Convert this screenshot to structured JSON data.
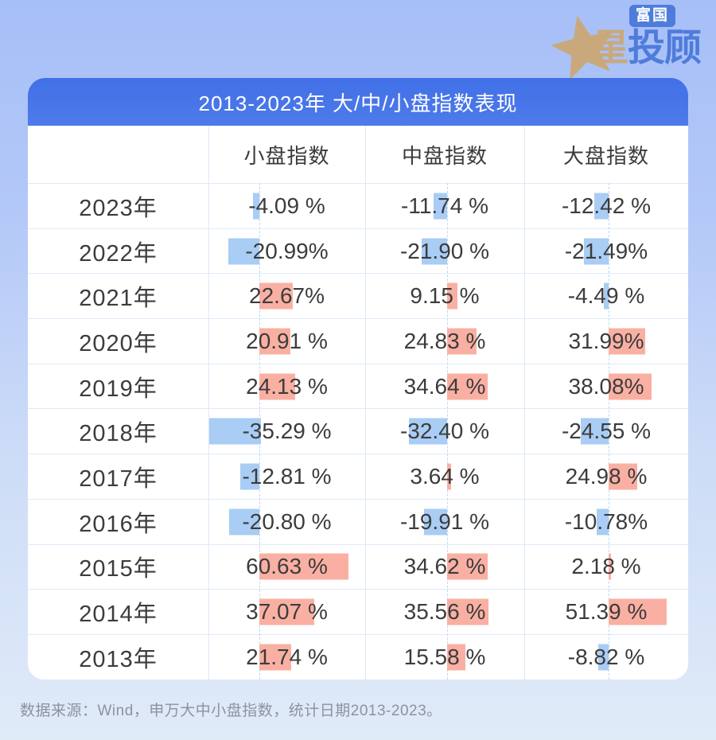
{
  "logo": {
    "badge": "富国",
    "star_char": "星",
    "rest": "投顾"
  },
  "card": {
    "title": "2013-2023年 大/中/小盘指数表现"
  },
  "table": {
    "columns": [
      "",
      "小盘指数",
      "中盘指数",
      "大盘指数"
    ],
    "rows": [
      {
        "year": "2023年",
        "values": [
          "-4.09 %",
          "-11.74 %",
          "-12.42 %"
        ],
        "nums": [
          -4.09,
          -11.74,
          -12.42
        ]
      },
      {
        "year": "2022年",
        "values": [
          "-20.99%",
          "-21.90 %",
          "-21.49%"
        ],
        "nums": [
          -20.99,
          -21.9,
          -21.49
        ]
      },
      {
        "year": "2021年",
        "values": [
          "22.67%",
          "9.15 %",
          "-4.49 %"
        ],
        "nums": [
          22.67,
          9.15,
          -4.49
        ]
      },
      {
        "year": "2020年",
        "values": [
          "20.91 %",
          "24.83 %",
          "31.99%"
        ],
        "nums": [
          20.91,
          24.83,
          31.99
        ]
      },
      {
        "year": "2019年",
        "values": [
          "24.13 %",
          "34.64 %",
          "38.08%"
        ],
        "nums": [
          24.13,
          34.64,
          38.08
        ]
      },
      {
        "year": "2018年",
        "values": [
          "-35.29 %",
          "-32.40 %",
          "-24.55 %"
        ],
        "nums": [
          -35.29,
          -32.4,
          -24.55
        ]
      },
      {
        "year": "2017年",
        "values": [
          "-12.81 %",
          "3.64 %",
          "24.98 %"
        ],
        "nums": [
          -12.81,
          3.64,
          24.98
        ]
      },
      {
        "year": "2016年",
        "values": [
          "-20.80 %",
          "-19.91 %",
          "-10.78%"
        ],
        "nums": [
          -20.8,
          -19.91,
          -10.78
        ]
      },
      {
        "year": "2015年",
        "values": [
          "60.63 %",
          "34.62 %",
          "2.18 %"
        ],
        "nums": [
          60.63,
          34.62,
          2.18
        ]
      },
      {
        "year": "2014年",
        "values": [
          "37.07 %",
          "35.56 %",
          "51.39 %"
        ],
        "nums": [
          37.07,
          35.56,
          51.39
        ]
      },
      {
        "year": "2013年",
        "values": [
          "21.74 %",
          "15.58 %",
          "-8.82 %"
        ],
        "nums": [
          21.74,
          15.58,
          -8.82
        ]
      }
    ]
  },
  "footer": "数据来源：Wind，申万大中小盘指数，统计日期2013-2023。",
  "colors": {
    "positive_bar": "#f9b0a3",
    "negative_bar": "#a9cdf4",
    "header_blue": "#4473e8",
    "logo_gold": "#c9a97c",
    "logo_blue": "#4f7cdb"
  },
  "chart_data": {
    "type": "table",
    "title": "2013-2023年 大/中/小盘指数表现",
    "categories": [
      "2023年",
      "2022年",
      "2021年",
      "2020年",
      "2019年",
      "2018年",
      "2017年",
      "2016年",
      "2015年",
      "2014年",
      "2013年"
    ],
    "series": [
      {
        "name": "小盘指数",
        "values": [
          -4.09,
          -20.99,
          22.67,
          20.91,
          24.13,
          -35.29,
          -12.81,
          -20.8,
          60.63,
          37.07,
          21.74
        ]
      },
      {
        "name": "中盘指数",
        "values": [
          -11.74,
          -21.9,
          9.15,
          24.83,
          34.64,
          -32.4,
          3.64,
          -19.91,
          34.62,
          35.56,
          15.58
        ]
      },
      {
        "name": "大盘指数",
        "values": [
          -12.42,
          -21.49,
          -4.49,
          31.99,
          38.08,
          -24.55,
          24.98,
          -10.78,
          2.18,
          51.39,
          -8.82
        ]
      }
    ],
    "unit": "%",
    "annotations": "每个单元格内嵌条形：正值为橙红色条向右延伸，负值为蓝色条向左延伸，虚线为零轴",
    "source_note": "数据来源：Wind，申万大中小盘指数，统计日期2013-2023。"
  }
}
